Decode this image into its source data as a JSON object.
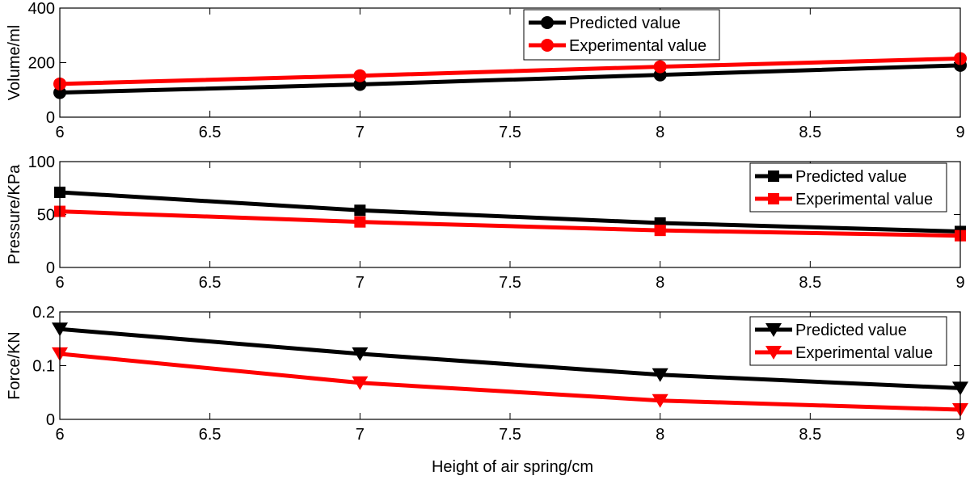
{
  "figure": {
    "xlabel": "Height of air spring/cm"
  },
  "chart_data": [
    {
      "type": "line",
      "x": [
        6,
        7,
        8,
        9
      ],
      "xlim": [
        6,
        9
      ],
      "xticks": [
        "6",
        "6.5",
        "7",
        "7.5",
        "8",
        "8.5",
        "9"
      ],
      "ylabel": "Volume/ml",
      "ylim": [
        0,
        400
      ],
      "yticks": [
        "0",
        "200",
        "400"
      ],
      "legend_position": "top-center",
      "series": [
        {
          "name": "Predicted value",
          "values": [
            90,
            120,
            155,
            190
          ],
          "color": "#000000",
          "marker": "circle"
        },
        {
          "name": "Experimental value",
          "values": [
            122,
            152,
            185,
            215
          ],
          "color": "#ff0000",
          "marker": "circle"
        }
      ]
    },
    {
      "type": "line",
      "x": [
        6,
        7,
        8,
        9
      ],
      "xlim": [
        6,
        9
      ],
      "xticks": [
        "6",
        "6.5",
        "7",
        "7.5",
        "8",
        "8.5",
        "9"
      ],
      "ylabel": "Pressure/KPa",
      "ylim": [
        0,
        100
      ],
      "yticks": [
        "0",
        "50",
        "100"
      ],
      "legend_position": "top-right",
      "series": [
        {
          "name": "Predicted value",
          "values": [
            71,
            54,
            42,
            34
          ],
          "color": "#000000",
          "marker": "square"
        },
        {
          "name": "Experimental value",
          "values": [
            53,
            43,
            35,
            30
          ],
          "color": "#ff0000",
          "marker": "square"
        }
      ]
    },
    {
      "type": "line",
      "x": [
        6,
        7,
        8,
        9
      ],
      "xlim": [
        6,
        9
      ],
      "xticks": [
        "6",
        "6.5",
        "7",
        "7.5",
        "8",
        "8.5",
        "9"
      ],
      "ylabel": "Force/KN",
      "ylim": [
        0,
        0.2
      ],
      "yticks": [
        "0",
        "0.1",
        "0.2"
      ],
      "legend_position": "top-right",
      "series": [
        {
          "name": "Predicted value",
          "values": [
            0.168,
            0.122,
            0.083,
            0.058
          ],
          "color": "#000000",
          "marker": "triangle-down"
        },
        {
          "name": "Experimental value",
          "values": [
            0.122,
            0.068,
            0.035,
            0.018
          ],
          "color": "#ff0000",
          "marker": "triangle-down"
        }
      ]
    }
  ]
}
